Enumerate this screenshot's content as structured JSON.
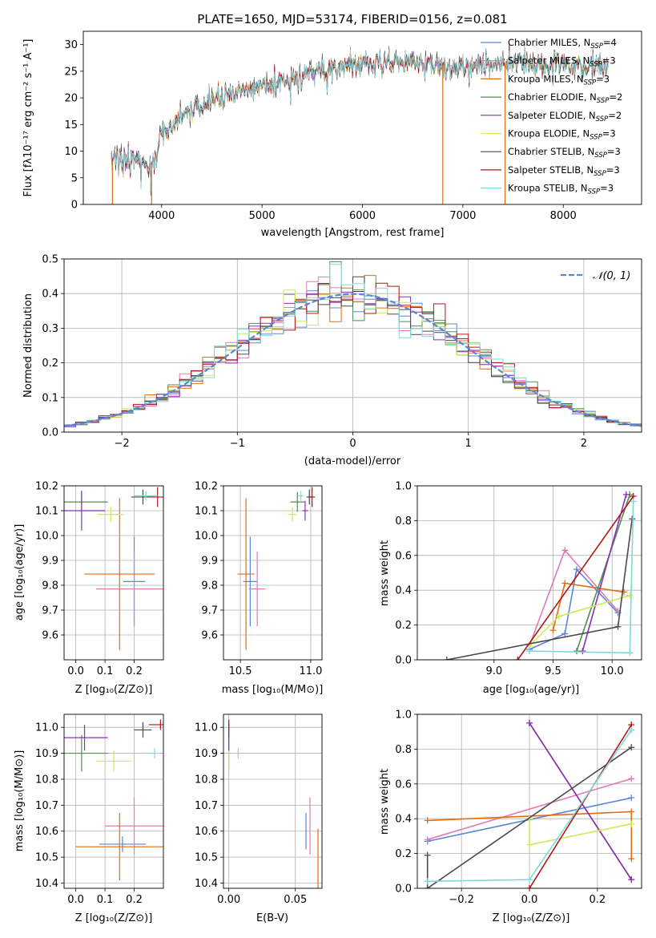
{
  "colors": {
    "Chabrier MILES": "#5b86d6",
    "Salpeter MILES": "#e07bb4",
    "Kroupa MILES": "#e36c10",
    "Chabrier ELODIE": "#4f8f4f",
    "Salpeter ELODIE": "#8b2fb5",
    "Kroupa ELODIE": "#d4e65a",
    "Chabrier STELIB": "#4a4a4a",
    "Salpeter STELIB": "#b01717",
    "Kroupa STELIB": "#7fd8dc"
  },
  "chart_data": [
    {
      "id": "spectrum",
      "type": "line",
      "title": "PLATE=1650, MJD=53174, FIBERID=0156, z=0.081",
      "xlabel": "wavelength [Angstrom, rest frame]",
      "ylabel": "Flux [fλ10⁻¹⁷ erg cm⁻² s⁻¹ A⁻¹]",
      "xlim": [
        3220,
        8780
      ],
      "ylim": [
        0,
        32.5
      ],
      "xticks": [
        4000,
        5000,
        6000,
        7000,
        8000
      ],
      "yticks": [
        0,
        5,
        10,
        15,
        20,
        25,
        30
      ],
      "grid": false,
      "legend_position": "right",
      "legend": [
        {
          "label": "Chabrier MILES, N_SSP=4",
          "text": "Chabrier MILES, N",
          "sub": "SSP",
          "num": "=4",
          "series": "Chabrier MILES"
        },
        {
          "label": "Salpeter MILES, N_SSP=3",
          "text": "Salpeter MILES, N",
          "sub": "SSP",
          "num": "=3",
          "series": "Salpeter MILES"
        },
        {
          "label": "Kroupa MILES, N_SSP=3",
          "text": "Kroupa MILES, N",
          "sub": "SSP",
          "num": "=3",
          "series": "Kroupa MILES"
        },
        {
          "label": "Chabrier ELODIE, N_SSP=2",
          "text": "Chabrier ELODIE, N",
          "sub": "SSP",
          "num": "=2",
          "series": "Chabrier ELODIE"
        },
        {
          "label": "Salpeter ELODIE, N_SSP=2",
          "text": "Salpeter ELODIE, N",
          "sub": "SSP",
          "num": "=2",
          "series": "Salpeter ELODIE"
        },
        {
          "label": "Kroupa ELODIE, N_SSP=3",
          "text": "Kroupa ELODIE, N",
          "sub": "SSP",
          "num": "=3",
          "series": "Kroupa ELODIE"
        },
        {
          "label": "Chabrier STELIB, N_SSP=3",
          "text": "Chabrier STELIB, N",
          "sub": "SSP",
          "num": "=3",
          "series": "Chabrier STELIB"
        },
        {
          "label": "Salpeter STELIB, N_SSP=3",
          "text": "Salpeter STELIB, N",
          "sub": "SSP",
          "num": "=3",
          "series": "Salpeter STELIB"
        },
        {
          "label": "Kroupa STELIB, N_SSP=3",
          "text": "Kroupa STELIB, N",
          "sub": "SSP",
          "num": "=3",
          "series": "Kroupa STELIB"
        }
      ],
      "continuum": [
        [
          3500,
          8
        ],
        [
          3600,
          9
        ],
        [
          3700,
          8.5
        ],
        [
          3800,
          8
        ],
        [
          3900,
          7.5
        ],
        [
          3950,
          8.5
        ],
        [
          4000,
          13.5
        ],
        [
          4100,
          15
        ],
        [
          4200,
          16
        ],
        [
          4300,
          17.5
        ],
        [
          4400,
          18.5
        ],
        [
          4500,
          19.5
        ],
        [
          4600,
          20.5
        ],
        [
          4700,
          21
        ],
        [
          4800,
          21.5
        ],
        [
          4900,
          22
        ],
        [
          5000,
          22.5
        ],
        [
          5100,
          22.5
        ],
        [
          5200,
          23
        ],
        [
          5300,
          23.5
        ],
        [
          5400,
          24
        ],
        [
          5500,
          24.5
        ],
        [
          5600,
          25
        ],
        [
          5700,
          25.5
        ],
        [
          5800,
          26
        ],
        [
          5900,
          26.5
        ],
        [
          6000,
          26.5
        ],
        [
          6200,
          26.5
        ],
        [
          6400,
          26.5
        ],
        [
          6600,
          26.5
        ],
        [
          6800,
          26
        ],
        [
          7000,
          26
        ],
        [
          7200,
          26
        ],
        [
          7400,
          26.5
        ],
        [
          7600,
          26.5
        ],
        [
          7800,
          26
        ],
        [
          8000,
          26
        ],
        [
          8200,
          26
        ],
        [
          8450,
          26
        ]
      ],
      "drop_lines": [
        {
          "series": "Kroupa MILES",
          "x": 3510
        },
        {
          "series": "Kroupa MILES",
          "x": 3900
        },
        {
          "series": "Kroupa MILES",
          "x": 6800
        },
        {
          "series": "Kroupa MILES",
          "x": 7420
        }
      ]
    },
    {
      "id": "residuals",
      "type": "line",
      "xlabel": "(data-model)/error",
      "ylabel": "Normed distribution",
      "xlim": [
        -2.5,
        2.5
      ],
      "ylim": [
        0,
        0.5
      ],
      "xticks": [
        -2,
        -1,
        0,
        1,
        2
      ],
      "yticks": [
        0.0,
        0.1,
        0.2,
        0.3,
        0.4,
        0.5
      ],
      "grid": true,
      "legend_position": "top-right",
      "legend": [
        "𝒩(0, 1)"
      ],
      "model_curve": {
        "name": "𝒩(0, 1)",
        "mean": 0,
        "sigma": 1,
        "color": "#5b86d6",
        "dashed": true
      },
      "bin_width": 0.1
    },
    {
      "id": "age-vs-Z",
      "type": "scatter",
      "xlabel": "Z [log₁₀(Z/Z⊙)]",
      "ylabel": "age  [log₁₀(age/yr)]",
      "xlim": [
        -0.04,
        0.3
      ],
      "ylim": [
        9.5,
        10.2
      ],
      "xticks": [
        0.0,
        0.1,
        0.2
      ],
      "yticks": [
        9.6,
        9.7,
        9.8,
        9.9,
        10.0,
        10.1,
        10.2
      ],
      "grid": true,
      "points": [
        {
          "series": "Chabrier MILES",
          "x": 0.2,
          "y": 9.815,
          "xerr": 0.038,
          "yerr": 0.18
        },
        {
          "series": "Salpeter MILES",
          "x": 0.2,
          "y": 9.785,
          "xerr": 0.13,
          "yerr": 0.15
        },
        {
          "series": "Kroupa MILES",
          "x": 0.15,
          "y": 9.845,
          "xerr": 0.12,
          "yerr": 0.305
        },
        {
          "series": "Chabrier ELODIE",
          "x": 0.02,
          "y": 10.135,
          "xerr": 0.09,
          "yerr": 0.04
        },
        {
          "series": "Salpeter ELODIE",
          "x": 0.02,
          "y": 10.1,
          "xerr": 0.08,
          "yerr": 0.08
        },
        {
          "series": "Kroupa ELODIE",
          "x": 0.12,
          "y": 10.085,
          "xerr": 0.045,
          "yerr": 0.03
        },
        {
          "series": "Chabrier STELIB",
          "x": 0.23,
          "y": 10.155,
          "xerr": 0.04,
          "yerr": 0.03
        },
        {
          "series": "Salpeter STELIB",
          "x": 0.28,
          "y": 10.155,
          "xerr": 0.04,
          "yerr": 0.04
        },
        {
          "series": "Kroupa STELIB",
          "x": 0.24,
          "y": 10.16,
          "xerr": 0.04,
          "yerr": 0.02
        }
      ]
    },
    {
      "id": "age-vs-mass",
      "type": "scatter",
      "xlabel": "mass [log₁₀(M/M⊙)]",
      "ylabel": "",
      "xlim": [
        10.38,
        11.08
      ],
      "ylim": [
        9.5,
        10.2
      ],
      "xticks": [
        10.5,
        11.0
      ],
      "yticks": [
        9.6,
        9.7,
        9.8,
        9.9,
        10.0,
        10.1,
        10.2
      ],
      "grid": true,
      "points": [
        {
          "series": "Chabrier MILES",
          "x": 10.57,
          "y": 9.815,
          "xerr": 0.05,
          "yerr": 0.18
        },
        {
          "series": "Salpeter MILES",
          "x": 10.62,
          "y": 9.785,
          "xerr": 0.06,
          "yerr": 0.15
        },
        {
          "series": "Kroupa MILES",
          "x": 10.54,
          "y": 9.845,
          "xerr": 0.06,
          "yerr": 0.305
        },
        {
          "series": "Chabrier ELODIE",
          "x": 10.905,
          "y": 10.135,
          "xerr": 0.05,
          "yerr": 0.04
        },
        {
          "series": "Salpeter ELODIE",
          "x": 10.96,
          "y": 10.1,
          "xerr": 0.02,
          "yerr": 0.04
        },
        {
          "series": "Kroupa ELODIE",
          "x": 10.87,
          "y": 10.085,
          "xerr": 0.03,
          "yerr": 0.03
        },
        {
          "series": "Chabrier STELIB",
          "x": 10.99,
          "y": 10.155,
          "xerr": 0.02,
          "yerr": 0.03
        },
        {
          "series": "Salpeter STELIB",
          "x": 11.01,
          "y": 10.155,
          "xerr": 0.02,
          "yerr": 0.04
        },
        {
          "series": "Kroupa STELIB",
          "x": 10.93,
          "y": 10.16,
          "xerr": 0.02,
          "yerr": 0.02
        }
      ]
    },
    {
      "id": "mass-weight-vs-age",
      "type": "line",
      "xlabel": "age  [log₁₀(age/yr)]",
      "ylabel": "mass weight",
      "xlim": [
        8.35,
        10.25
      ],
      "ylim": [
        0,
        1.0
      ],
      "xticks": [
        9.0,
        9.5,
        10.0
      ],
      "yticks": [
        0.0,
        0.2,
        0.4,
        0.6,
        0.8,
        1.0
      ],
      "grid": true,
      "series": [
        {
          "name": "Chabrier MILES",
          "x": [
            9.3,
            9.6,
            9.7,
            10.05
          ],
          "y": [
            0.06,
            0.15,
            0.52,
            0.27
          ]
        },
        {
          "name": "Salpeter MILES",
          "x": [
            9.3,
            9.6,
            10.05
          ],
          "y": [
            0.08,
            0.63,
            0.28
          ]
        },
        {
          "name": "Kroupa MILES",
          "x": [
            9.5,
            9.6,
            10.1
          ],
          "y": [
            0.17,
            0.44,
            0.39
          ]
        },
        {
          "name": "Chabrier ELODIE",
          "x": [
            9.7,
            10.15
          ],
          "y": [
            0.05,
            0.95
          ]
        },
        {
          "name": "Salpeter ELODIE",
          "x": [
            9.75,
            10.12
          ],
          "y": [
            0.05,
            0.95
          ]
        },
        {
          "name": "Kroupa ELODIE",
          "x": [
            9.3,
            9.55,
            10.15
          ],
          "y": [
            0.08,
            0.25,
            0.37
          ]
        },
        {
          "name": "Chabrier STELIB",
          "x": [
            8.6,
            10.05,
            10.17
          ],
          "y": [
            0.0,
            0.19,
            0.81
          ]
        },
        {
          "name": "Salpeter STELIB",
          "x": [
            9.2,
            10.18
          ],
          "y": [
            0.0,
            0.94
          ]
        },
        {
          "name": "Kroupa STELIB",
          "x": [
            9.3,
            10.15,
            10.18
          ],
          "y": [
            0.05,
            0.04,
            0.91
          ]
        }
      ]
    },
    {
      "id": "mass-vs-Z",
      "type": "scatter",
      "xlabel": "Z [log₁₀(Z/Z⊙)]",
      "ylabel": "mass [log₁₀(M/M⊙)]",
      "xlim": [
        -0.04,
        0.3
      ],
      "ylim": [
        10.38,
        11.05
      ],
      "xticks": [
        0.0,
        0.1,
        0.2
      ],
      "yticks": [
        10.4,
        10.5,
        10.6,
        10.7,
        10.8,
        10.9,
        11.0
      ],
      "grid": true,
      "points": [
        {
          "series": "Chabrier MILES",
          "x": 0.16,
          "y": 10.55,
          "xerr": 0.08,
          "yerr": 0.03
        },
        {
          "series": "Salpeter MILES",
          "x": 0.2,
          "y": 10.62,
          "xerr": 0.1,
          "yerr": 0.11
        },
        {
          "series": "Kroupa MILES",
          "x": 0.15,
          "y": 10.54,
          "xerr": 0.15,
          "yerr": 0.13
        },
        {
          "series": "Chabrier ELODIE",
          "x": 0.02,
          "y": 10.9,
          "xerr": 0.09,
          "yerr": 0.07
        },
        {
          "series": "Salpeter ELODIE",
          "x": 0.03,
          "y": 10.96,
          "xerr": 0.08,
          "yerr": 0.05
        },
        {
          "series": "Kroupa ELODIE",
          "x": 0.13,
          "y": 10.87,
          "xerr": 0.06,
          "yerr": 0.04
        },
        {
          "series": "Chabrier STELIB",
          "x": 0.23,
          "y": 10.99,
          "xerr": 0.03,
          "yerr": 0.03
        },
        {
          "series": "Salpeter STELIB",
          "x": 0.29,
          "y": 11.01,
          "xerr": 0.04,
          "yerr": 0.02
        },
        {
          "series": "Kroupa STELIB",
          "x": 0.27,
          "y": 10.9,
          "xerr": 0.03,
          "yerr": 0.02
        }
      ]
    },
    {
      "id": "mass-vs-EBV",
      "type": "scatter",
      "xlabel": "E(B-V)",
      "ylabel": "",
      "xlim": [
        -0.004,
        0.07
      ],
      "ylim": [
        10.38,
        11.05
      ],
      "xticks": [
        0.0,
        0.05
      ],
      "yticks": [
        10.4,
        10.5,
        10.6,
        10.7,
        10.8,
        10.9,
        11.0
      ],
      "grid": true,
      "points": [
        {
          "series": "Chabrier MILES",
          "x": 0.058,
          "y": 10.6,
          "xerr": 0.0,
          "yerr": 0.07
        },
        {
          "series": "Salpeter MILES",
          "x": 0.061,
          "y": 10.62,
          "xerr": 0.0,
          "yerr": 0.11
        },
        {
          "series": "Kroupa MILES",
          "x": 0.067,
          "y": 10.49,
          "xerr": 0.0,
          "yerr": 0.12
        },
        {
          "series": "Chabrier ELODIE",
          "x": 0.0,
          "y": 10.9,
          "xerr": 0.0,
          "yerr": 0.07
        },
        {
          "series": "Salpeter ELODIE",
          "x": 0.0,
          "y": 10.96,
          "xerr": 0.0,
          "yerr": 0.05
        },
        {
          "series": "Kroupa ELODIE",
          "x": 0.0,
          "y": 10.87,
          "xerr": 0.0,
          "yerr": 0.04
        },
        {
          "series": "Chabrier STELIB",
          "x": 0.0,
          "y": 10.99,
          "xerr": 0.0,
          "yerr": 0.03
        },
        {
          "series": "Salpeter STELIB",
          "x": 0.0,
          "y": 11.01,
          "xerr": 0.0,
          "yerr": 0.02
        },
        {
          "series": "Kroupa STELIB",
          "x": 0.007,
          "y": 10.9,
          "xerr": 0.0,
          "yerr": 0.02
        }
      ]
    },
    {
      "id": "mass-weight-vs-Z",
      "type": "line",
      "xlabel": "Z [log₁₀(Z/Z⊙)]",
      "ylabel": "mass weight",
      "xlim": [
        -0.33,
        0.33
      ],
      "ylim": [
        0,
        1.0
      ],
      "xticks": [
        -0.2,
        0.0,
        0.2
      ],
      "xticklabels": [
        "−0.2",
        "0.0",
        "0.2"
      ],
      "yticks": [
        0.0,
        0.2,
        0.4,
        0.6,
        0.8,
        1.0
      ],
      "grid": true,
      "series": [
        {
          "name": "Chabrier MILES",
          "x": [
            -0.3,
            0.3
          ],
          "y": [
            0.27,
            0.52
          ]
        },
        {
          "name": "Salpeter MILES",
          "x": [
            -0.3,
            0.3
          ],
          "y": [
            0.28,
            0.63
          ]
        },
        {
          "name": "Kroupa MILES",
          "x": [
            -0.3,
            0.3,
            0.3
          ],
          "y": [
            0.39,
            0.44,
            0.17
          ]
        },
        {
          "name": "Chabrier ELODIE",
          "x": [
            0.0,
            0.3
          ],
          "y": [
            0.95,
            0.05
          ]
        },
        {
          "name": "Salpeter ELODIE",
          "x": [
            0.0,
            0.3
          ],
          "y": [
            0.95,
            0.05
          ]
        },
        {
          "name": "Kroupa ELODIE",
          "x": [
            0.0,
            0.0,
            0.3
          ],
          "y": [
            0.4,
            0.25,
            0.37
          ]
        },
        {
          "name": "Chabrier STELIB",
          "x": [
            -0.3,
            -0.3,
            0.3
          ],
          "y": [
            0.19,
            0.0,
            0.81
          ]
        },
        {
          "name": "Salpeter STELIB",
          "x": [
            0.0,
            0.3
          ],
          "y": [
            0.0,
            0.94
          ]
        },
        {
          "name": "Kroupa STELIB",
          "x": [
            -0.3,
            0.0,
            0.3
          ],
          "y": [
            0.04,
            0.05,
            0.91
          ]
        }
      ]
    }
  ]
}
